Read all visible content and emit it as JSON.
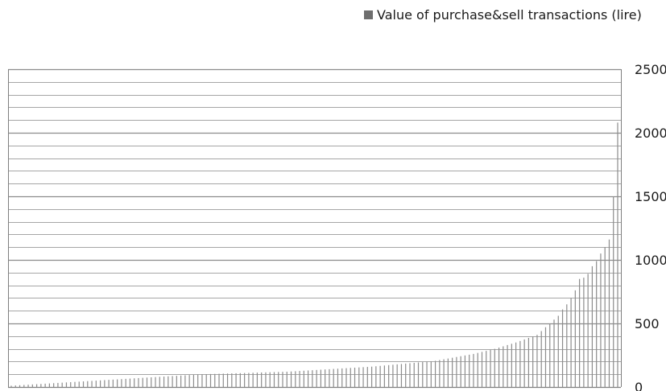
{
  "chart_data": {
    "type": "bar",
    "legend": [
      {
        "name": "Value of purchase&sell transactions (lire)",
        "color": "#6e6e6e"
      }
    ],
    "legend_position": "top-right",
    "series": [
      {
        "name": "Value of purchase&sell transactions (lire)",
        "values": [
          10,
          12,
          14,
          16,
          18,
          20,
          22,
          24,
          26,
          28,
          30,
          32,
          34,
          36,
          38,
          40,
          42,
          44,
          46,
          48,
          50,
          52,
          54,
          56,
          58,
          60,
          62,
          64,
          66,
          68,
          70,
          72,
          74,
          76,
          78,
          80,
          82,
          84,
          86,
          88,
          90,
          92,
          94,
          96,
          98,
          100,
          101,
          102,
          103,
          104,
          105,
          106,
          107,
          108,
          109,
          110,
          111,
          112,
          113,
          114,
          115,
          116,
          117,
          118,
          119,
          120,
          122,
          124,
          126,
          128,
          130,
          132,
          134,
          136,
          138,
          140,
          142,
          144,
          146,
          148,
          150,
          152,
          154,
          156,
          158,
          160,
          163,
          166,
          169,
          172,
          175,
          178,
          181,
          184,
          187,
          190,
          193,
          196,
          199,
          202,
          206,
          212,
          218,
          224,
          230,
          236,
          242,
          248,
          254,
          260,
          268,
          276,
          284,
          292,
          300,
          310,
          320,
          330,
          340,
          350,
          362,
          374,
          386,
          398,
          410,
          440,
          470,
          500,
          530,
          560,
          610,
          650,
          700,
          760,
          850,
          860,
          890,
          950,
          990,
          1050,
          1100,
          1160,
          1500,
          2080
        ]
      }
    ],
    "x_tick_labels": [],
    "y_ticks": [
      0,
      500,
      1000,
      1500,
      2000,
      2500
    ],
    "ylim": [
      0,
      2500
    ],
    "y_axis_side": "right",
    "grid": true,
    "colors": {
      "bar": "#8c8c8c",
      "grid_major": "#8c8c8c",
      "grid_minor": "#a6a6a6",
      "axis": "#7f7f7f"
    }
  }
}
